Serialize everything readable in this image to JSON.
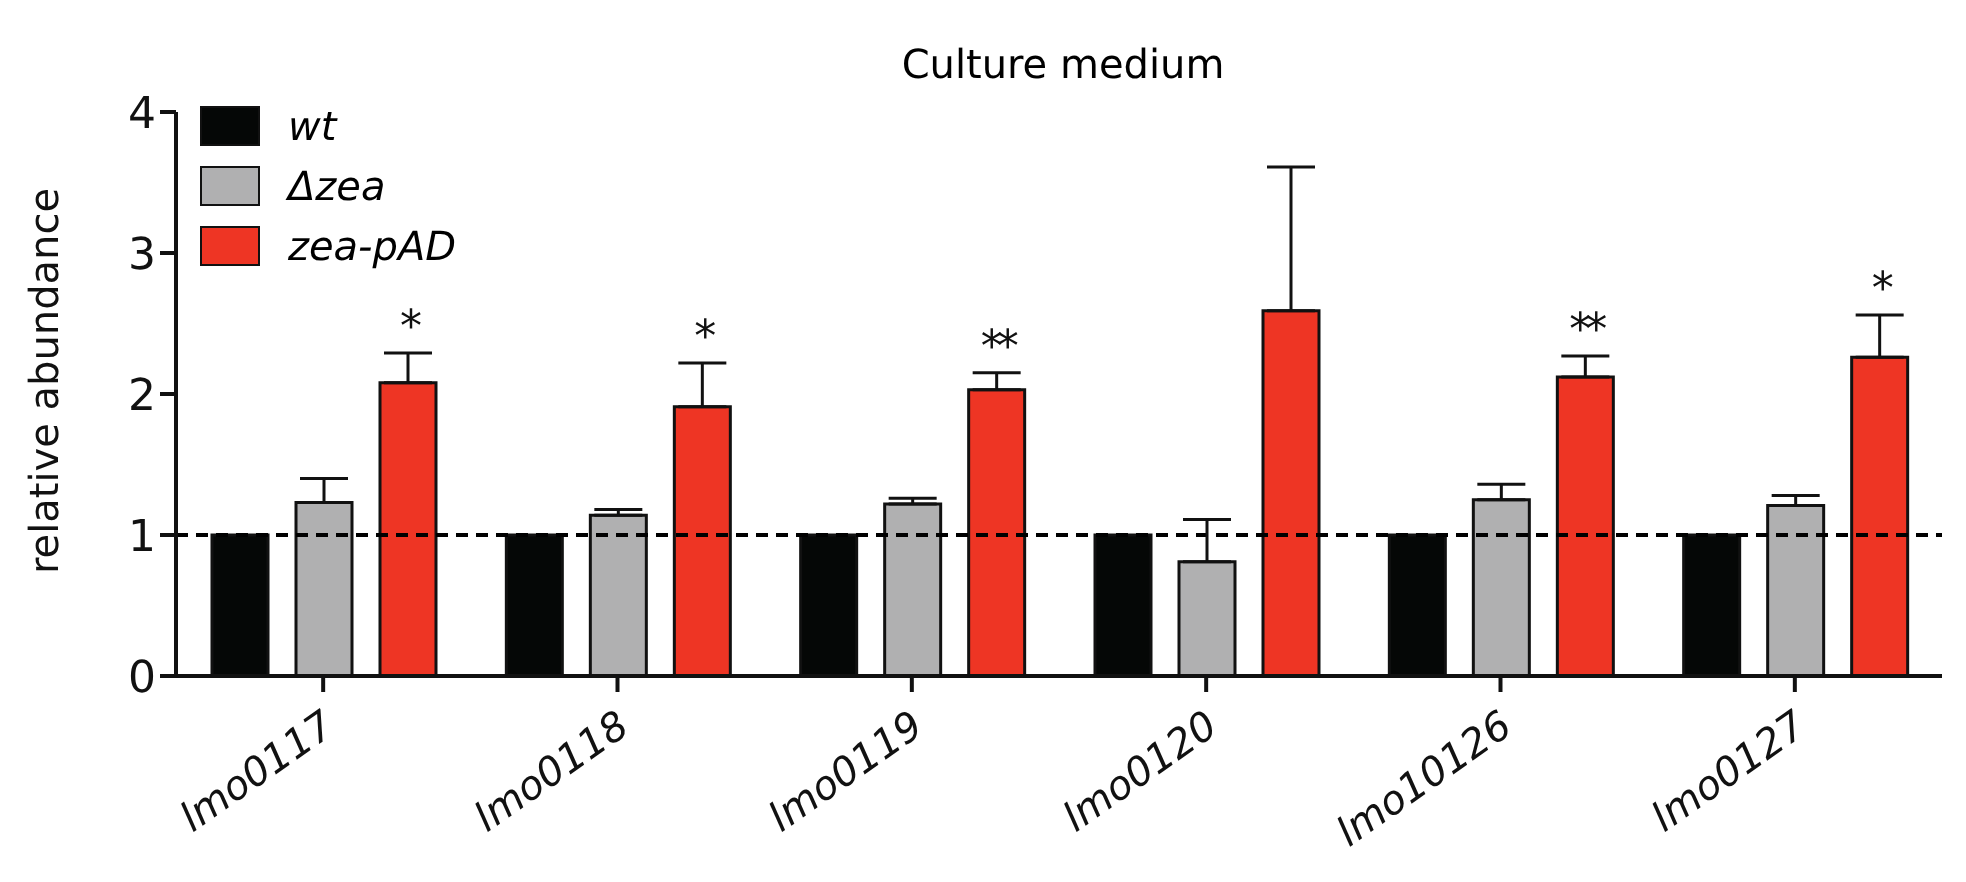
{
  "chart_data": {
    "type": "bar",
    "title": "Culture medium",
    "ylabel": "relative abundance",
    "categories": [
      "lmo0117",
      "lmo0118",
      "lmo0119",
      "lmo0120",
      "lmo10126",
      "lmo0127"
    ],
    "series": [
      {
        "name": "wt",
        "color": "#050706",
        "values": [
          1,
          1,
          1,
          1,
          1,
          1
        ]
      },
      {
        "name": "Δzea",
        "color": "#b0b0b1",
        "values": [
          1.23,
          1.14,
          1.22,
          0.81,
          1.25,
          1.21
        ],
        "errors": [
          [
            1.23,
            1.4
          ],
          [
            1.14,
            1.18
          ],
          [
            1.22,
            1.26
          ],
          [
            0.81,
            1.11
          ],
          [
            1.25,
            1.36
          ],
          [
            1.21,
            1.28
          ]
        ]
      },
      {
        "name": "zea-pAD",
        "color": "#ee3524",
        "values": [
          2.08,
          1.91,
          2.03,
          2.59,
          2.12,
          2.26
        ],
        "errors": [
          [
            2.08,
            2.29
          ],
          [
            1.91,
            2.22
          ],
          [
            2.03,
            2.15
          ],
          [
            2.59,
            3.61
          ],
          [
            2.12,
            2.27
          ],
          [
            2.26,
            2.56
          ]
        ],
        "value_labels": [
          "*",
          "*",
          "**",
          null,
          "**",
          "*"
        ]
      }
    ],
    "ref_lines": [
      {
        "axis": "y",
        "value": 1,
        "color": "#000000",
        "line_style": "dashed"
      }
    ],
    "ylim": [
      0,
      4
    ],
    "yticks": [
      0,
      1,
      2,
      3,
      4
    ],
    "grid": false,
    "legend": "top left"
  }
}
